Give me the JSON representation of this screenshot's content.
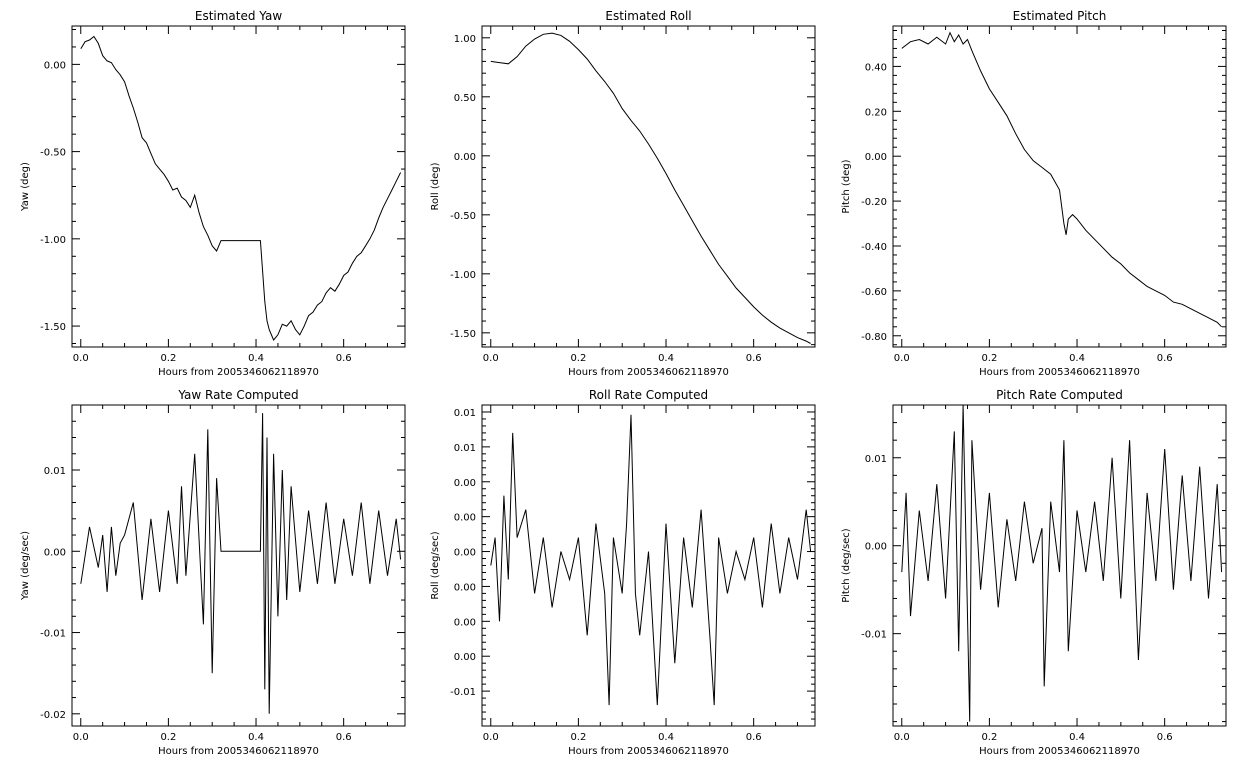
{
  "chart_data": [
    {
      "type": "line",
      "title": "Estimated Yaw",
      "xlabel": "Hours from 2005346062118970",
      "ylabel": "Yaw (deg)",
      "xlim": [
        -0.02,
        0.74
      ],
      "ylim": [
        -1.62,
        0.22
      ],
      "xticks": [
        0.0,
        0.2,
        0.4,
        0.6
      ],
      "xtick_labels": [
        "0.0",
        "0.2",
        "0.4",
        "0.6"
      ],
      "yticks": [
        0.0,
        -0.5,
        -1.0,
        -1.5
      ],
      "ytick_labels": [
        "0.00",
        "-0.50",
        "-1.00",
        "-1.50"
      ],
      "grid": false,
      "legend": "none",
      "series": [
        {
          "x": [
            0.0,
            0.01,
            0.02,
            0.03,
            0.04,
            0.05,
            0.06,
            0.07,
            0.08,
            0.09,
            0.1,
            0.11,
            0.12,
            0.13,
            0.14,
            0.15,
            0.16,
            0.17,
            0.18,
            0.19,
            0.2,
            0.21,
            0.22,
            0.23,
            0.24,
            0.25,
            0.26,
            0.27,
            0.28,
            0.29,
            0.3,
            0.31,
            0.32,
            0.33,
            0.34,
            0.35,
            0.36,
            0.37,
            0.38,
            0.39,
            0.4,
            0.41,
            0.42,
            0.425,
            0.43,
            0.44,
            0.45,
            0.46,
            0.47,
            0.48,
            0.49,
            0.5,
            0.51,
            0.52,
            0.53,
            0.54,
            0.55,
            0.56,
            0.57,
            0.58,
            0.59,
            0.6,
            0.61,
            0.62,
            0.63,
            0.64,
            0.65,
            0.66,
            0.67,
            0.68,
            0.69,
            0.7,
            0.71,
            0.72,
            0.73
          ],
          "y": [
            0.09,
            0.13,
            0.14,
            0.16,
            0.12,
            0.05,
            0.02,
            0.01,
            -0.03,
            -0.06,
            -0.1,
            -0.18,
            -0.25,
            -0.33,
            -0.42,
            -0.45,
            -0.51,
            -0.57,
            -0.6,
            -0.63,
            -0.67,
            -0.72,
            -0.71,
            -0.76,
            -0.78,
            -0.82,
            -0.75,
            -0.85,
            -0.93,
            -0.98,
            -1.04,
            -1.07,
            -1.01,
            -1.01,
            -1.01,
            -1.01,
            -1.01,
            -1.01,
            -1.01,
            -1.01,
            -1.01,
            -1.01,
            -1.36,
            -1.47,
            -1.52,
            -1.58,
            -1.55,
            -1.49,
            -1.5,
            -1.47,
            -1.52,
            -1.55,
            -1.5,
            -1.44,
            -1.42,
            -1.38,
            -1.36,
            -1.31,
            -1.28,
            -1.3,
            -1.26,
            -1.21,
            -1.19,
            -1.14,
            -1.1,
            -1.08,
            -1.04,
            -1.0,
            -0.95,
            -0.88,
            -0.82,
            -0.77,
            -0.72,
            -0.67,
            -0.62
          ]
        }
      ]
    },
    {
      "type": "line",
      "title": "Estimated Roll",
      "xlabel": "Hours from 2005346062118970",
      "ylabel": "Roll (deg)",
      "xlim": [
        -0.02,
        0.74
      ],
      "ylim": [
        -1.62,
        1.1
      ],
      "xticks": [
        0.0,
        0.2,
        0.4,
        0.6
      ],
      "xtick_labels": [
        "0.0",
        "0.2",
        "0.4",
        "0.6"
      ],
      "yticks": [
        1.0,
        0.5,
        0.0,
        -0.5,
        -1.0,
        -1.5
      ],
      "ytick_labels": [
        "1.00",
        "0.50",
        "0.00",
        "-0.50",
        "-1.00",
        "-1.50"
      ],
      "grid": false,
      "legend": "none",
      "series": [
        {
          "x": [
            0.0,
            0.02,
            0.04,
            0.06,
            0.08,
            0.1,
            0.12,
            0.14,
            0.16,
            0.18,
            0.2,
            0.22,
            0.24,
            0.26,
            0.28,
            0.3,
            0.32,
            0.34,
            0.36,
            0.38,
            0.4,
            0.42,
            0.44,
            0.46,
            0.48,
            0.5,
            0.52,
            0.54,
            0.56,
            0.58,
            0.6,
            0.62,
            0.64,
            0.66,
            0.68,
            0.7,
            0.72,
            0.73
          ],
          "y": [
            0.8,
            0.79,
            0.78,
            0.84,
            0.93,
            0.99,
            1.03,
            1.04,
            1.02,
            0.97,
            0.9,
            0.82,
            0.72,
            0.63,
            0.53,
            0.4,
            0.3,
            0.21,
            0.1,
            -0.02,
            -0.15,
            -0.29,
            -0.42,
            -0.55,
            -0.68,
            -0.8,
            -0.92,
            -1.02,
            -1.12,
            -1.2,
            -1.28,
            -1.35,
            -1.41,
            -1.46,
            -1.5,
            -1.54,
            -1.57,
            -1.59
          ]
        }
      ]
    },
    {
      "type": "line",
      "title": "Estimated Pitch",
      "xlabel": "Hours from 2005346062118970",
      "ylabel": "Pitch (deg)",
      "xlim": [
        -0.02,
        0.74
      ],
      "ylim": [
        -0.85,
        0.58
      ],
      "xticks": [
        0.0,
        0.2,
        0.4,
        0.6
      ],
      "xtick_labels": [
        "0.0",
        "0.2",
        "0.4",
        "0.6"
      ],
      "yticks": [
        0.4,
        0.2,
        0.0,
        -0.2,
        -0.4,
        -0.6,
        -0.8
      ],
      "ytick_labels": [
        "0.40",
        "0.20",
        "0.00",
        "-0.20",
        "-0.40",
        "-0.60",
        "-0.80"
      ],
      "grid": false,
      "legend": "none",
      "series": [
        {
          "x": [
            0.0,
            0.02,
            0.04,
            0.06,
            0.08,
            0.1,
            0.11,
            0.12,
            0.13,
            0.14,
            0.15,
            0.16,
            0.18,
            0.2,
            0.22,
            0.24,
            0.26,
            0.28,
            0.3,
            0.32,
            0.34,
            0.36,
            0.37,
            0.375,
            0.38,
            0.39,
            0.4,
            0.42,
            0.44,
            0.46,
            0.48,
            0.5,
            0.52,
            0.54,
            0.56,
            0.58,
            0.6,
            0.62,
            0.64,
            0.66,
            0.68,
            0.7,
            0.72,
            0.73
          ],
          "y": [
            0.48,
            0.51,
            0.52,
            0.5,
            0.53,
            0.5,
            0.55,
            0.51,
            0.54,
            0.5,
            0.52,
            0.47,
            0.38,
            0.3,
            0.24,
            0.18,
            0.1,
            0.03,
            -0.02,
            -0.05,
            -0.08,
            -0.15,
            -0.3,
            -0.35,
            -0.28,
            -0.26,
            -0.28,
            -0.33,
            -0.37,
            -0.41,
            -0.45,
            -0.48,
            -0.52,
            -0.55,
            -0.58,
            -0.6,
            -0.62,
            -0.65,
            -0.66,
            -0.68,
            -0.7,
            -0.72,
            -0.74,
            -0.76
          ]
        }
      ]
    },
    {
      "type": "line",
      "title": "Yaw Rate Computed",
      "xlabel": "Hours from 2005346062118970",
      "ylabel": "Yaw (deg/sec)",
      "xlim": [
        -0.02,
        0.74
      ],
      "ylim": [
        -0.0215,
        0.018
      ],
      "xticks": [
        0.0,
        0.2,
        0.4,
        0.6
      ],
      "xtick_labels": [
        "0.0",
        "0.2",
        "0.4",
        "0.6"
      ],
      "yticks": [
        0.01,
        0.0,
        -0.01,
        -0.02
      ],
      "ytick_labels": [
        "0.01",
        "0.00",
        "-0.01",
        "-0.02"
      ],
      "grid": false,
      "legend": "none",
      "series": [
        {
          "x": [
            0.0,
            0.02,
            0.04,
            0.05,
            0.06,
            0.07,
            0.08,
            0.09,
            0.1,
            0.12,
            0.14,
            0.16,
            0.18,
            0.2,
            0.22,
            0.23,
            0.24,
            0.26,
            0.28,
            0.29,
            0.3,
            0.31,
            0.32,
            0.33,
            0.4,
            0.41,
            0.415,
            0.42,
            0.425,
            0.43,
            0.44,
            0.45,
            0.46,
            0.47,
            0.48,
            0.5,
            0.52,
            0.54,
            0.56,
            0.58,
            0.6,
            0.62,
            0.64,
            0.66,
            0.68,
            0.7,
            0.72,
            0.73
          ],
          "y": [
            -0.004,
            0.003,
            -0.002,
            0.002,
            -0.005,
            0.003,
            -0.003,
            0.001,
            0.002,
            0.006,
            -0.006,
            0.004,
            -0.005,
            0.005,
            -0.004,
            0.008,
            -0.003,
            0.012,
            -0.009,
            0.015,
            -0.015,
            0.009,
            0.0,
            0.0,
            0.0,
            0.0,
            0.017,
            -0.017,
            0.014,
            -0.02,
            0.012,
            -0.008,
            0.01,
            -0.006,
            0.008,
            -0.005,
            0.005,
            -0.004,
            0.006,
            -0.004,
            0.004,
            -0.003,
            0.006,
            -0.004,
            0.005,
            -0.003,
            0.004,
            -0.001
          ]
        }
      ]
    },
    {
      "type": "line",
      "title": "Roll Rate Computed",
      "xlabel": "Hours from 2005346062118970",
      "ylabel": "Roll (deg/sec)",
      "xlim": [
        -0.02,
        0.74
      ],
      "ylim": [
        -0.0125,
        0.0105
      ],
      "xticks": [
        0.0,
        0.2,
        0.4,
        0.6
      ],
      "xtick_labels": [
        "0.0",
        "0.2",
        "0.4",
        "0.6"
      ],
      "yticks": [
        0.01,
        0.0075,
        0.005,
        0.0025,
        0.0,
        -0.0025,
        -0.005,
        -0.0075,
        -0.01
      ],
      "ytick_labels": [
        "0.01",
        "0.01",
        "0.00",
        "0.00",
        "0.00",
        "0.00",
        "0.00",
        "0.00",
        "-0.01"
      ],
      "grid": false,
      "legend": "none",
      "series": [
        {
          "x": [
            0.0,
            0.01,
            0.02,
            0.03,
            0.04,
            0.05,
            0.06,
            0.08,
            0.1,
            0.12,
            0.14,
            0.16,
            0.18,
            0.2,
            0.22,
            0.24,
            0.26,
            0.27,
            0.28,
            0.3,
            0.31,
            0.32,
            0.33,
            0.34,
            0.36,
            0.38,
            0.4,
            0.42,
            0.44,
            0.46,
            0.48,
            0.5,
            0.51,
            0.52,
            0.54,
            0.56,
            0.58,
            0.6,
            0.62,
            0.64,
            0.66,
            0.68,
            0.7,
            0.72,
            0.73
          ],
          "y": [
            -0.001,
            0.001,
            -0.005,
            0.004,
            -0.002,
            0.0085,
            0.001,
            0.003,
            -0.003,
            0.001,
            -0.004,
            0.0,
            -0.002,
            0.001,
            -0.006,
            0.002,
            -0.003,
            -0.011,
            0.001,
            -0.003,
            0.002,
            0.0098,
            -0.003,
            -0.006,
            0.0,
            -0.011,
            0.002,
            -0.008,
            0.001,
            -0.004,
            0.003,
            -0.006,
            -0.011,
            0.001,
            -0.003,
            0.0,
            -0.002,
            0.001,
            -0.004,
            0.002,
            -0.003,
            0.001,
            -0.002,
            0.003,
            0.0
          ]
        }
      ]
    },
    {
      "type": "line",
      "title": "Pitch Rate Computed",
      "xlabel": "Hours from 2005346062118970",
      "ylabel": "Pitch (deg/sec)",
      "xlim": [
        -0.02,
        0.74
      ],
      "ylim": [
        -0.0205,
        0.016
      ],
      "xticks": [
        0.0,
        0.2,
        0.4,
        0.6
      ],
      "xtick_labels": [
        "0.0",
        "0.2",
        "0.4",
        "0.6"
      ],
      "yticks": [
        0.01,
        0.0,
        -0.01
      ],
      "ytick_labels": [
        "0.01",
        "0.00",
        "-0.01"
      ],
      "grid": false,
      "legend": "none",
      "series": [
        {
          "x": [
            0.0,
            0.01,
            0.02,
            0.04,
            0.06,
            0.08,
            0.1,
            0.12,
            0.13,
            0.14,
            0.15,
            0.155,
            0.16,
            0.18,
            0.2,
            0.22,
            0.24,
            0.26,
            0.28,
            0.3,
            0.32,
            0.325,
            0.34,
            0.36,
            0.37,
            0.38,
            0.4,
            0.42,
            0.44,
            0.46,
            0.48,
            0.5,
            0.52,
            0.54,
            0.56,
            0.58,
            0.6,
            0.62,
            0.64,
            0.66,
            0.68,
            0.7,
            0.72,
            0.73
          ],
          "y": [
            -0.003,
            0.006,
            -0.008,
            0.004,
            -0.004,
            0.007,
            -0.006,
            0.013,
            -0.012,
            0.016,
            -0.008,
            -0.02,
            0.012,
            -0.005,
            0.006,
            -0.007,
            0.003,
            -0.004,
            0.005,
            -0.002,
            0.002,
            -0.016,
            0.005,
            -0.003,
            0.012,
            -0.012,
            0.004,
            -0.003,
            0.005,
            -0.004,
            0.01,
            -0.006,
            0.012,
            -0.013,
            0.006,
            -0.004,
            0.011,
            -0.005,
            0.008,
            -0.004,
            0.009,
            -0.006,
            0.007,
            -0.003
          ]
        }
      ]
    }
  ]
}
